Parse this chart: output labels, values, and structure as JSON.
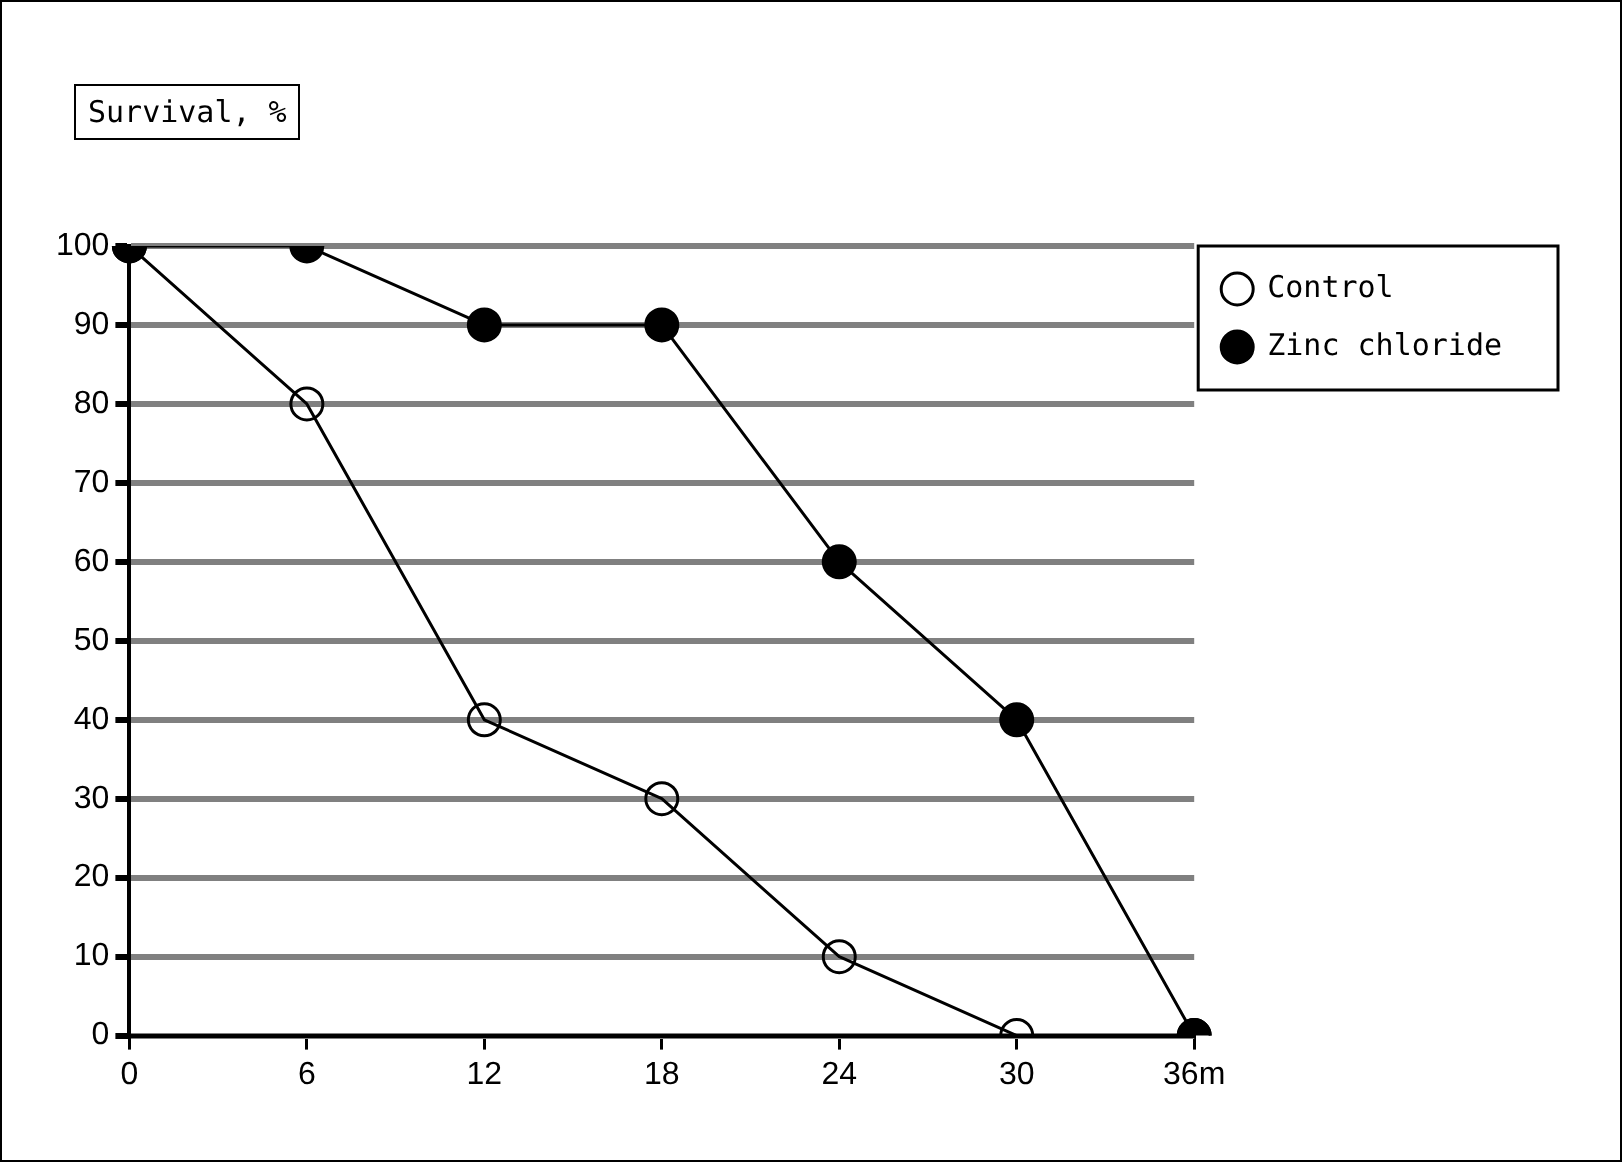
{
  "chart_data": {
    "type": "line",
    "ylabel": "Survival, %",
    "categories": [
      "0",
      "6",
      "12",
      "18",
      "24",
      "30",
      "36m"
    ],
    "series": [
      {
        "name": "Control",
        "color": "#000000",
        "values": [
          100,
          80,
          40,
          30,
          10,
          0,
          0
        ]
      },
      {
        "name": "Zinc chloride",
        "color": "#000000",
        "values": [
          100,
          100,
          90,
          90,
          60,
          40,
          0
        ]
      }
    ],
    "ylim": [
      0,
      100
    ],
    "yticks": [
      0,
      10,
      20,
      30,
      40,
      50,
      60,
      70,
      80,
      90,
      100
    ],
    "grid": "y",
    "legend": "top right",
    "marker": "circle",
    "line_style": "solid"
  }
}
